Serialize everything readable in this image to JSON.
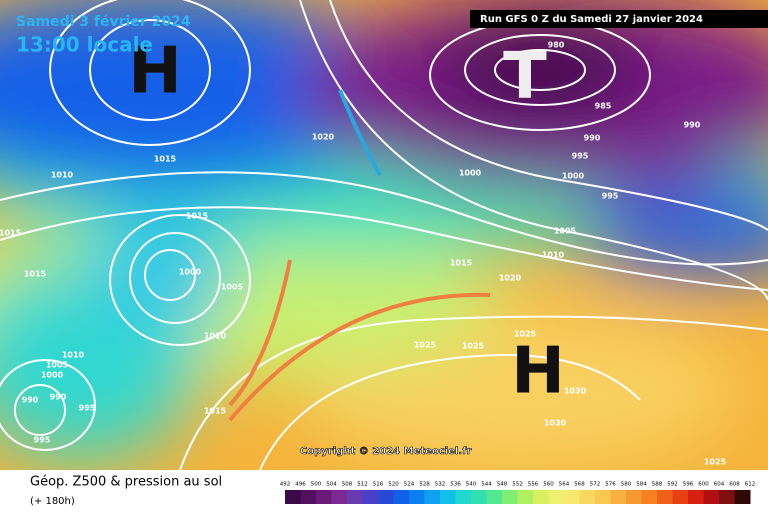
{
  "header": {
    "date": "Samedi 3 février 2024",
    "time": "13:00 locale",
    "run": "Run GFS 0 Z du Samedi 27 janvier 2024"
  },
  "map": {
    "centers": [
      "H",
      "H",
      "T"
    ],
    "isobars": [
      "1020",
      "1015",
      "1010",
      "1015",
      "1000",
      "1005",
      "1010",
      "1015",
      "1015",
      "1010",
      "1005",
      "1000",
      "990",
      "990",
      "995",
      "995",
      "1015",
      "980",
      "985",
      "990",
      "990",
      "995",
      "1000",
      "1000",
      "995",
      "1005",
      "1010",
      "1015",
      "1020",
      "1025",
      "1025",
      "1025",
      "1030",
      "1030",
      "1025"
    ],
    "copyright": "Copyright © 2024 Meteociel.fr"
  },
  "footer": {
    "title": "Géop. Z500 & pression au sol",
    "lead": "(+ 180h)"
  },
  "legend": {
    "ticks": [
      492,
      496,
      500,
      504,
      508,
      512,
      516,
      520,
      524,
      528,
      532,
      536,
      540,
      544,
      548,
      552,
      556,
      560,
      564,
      568,
      572,
      576,
      580,
      584,
      588,
      592,
      596,
      600,
      604,
      608,
      612
    ],
    "colors": [
      "#3a0a4a",
      "#52105e",
      "#6a1a78",
      "#7a2a92",
      "#6a3ab0",
      "#4a40c8",
      "#2a48d8",
      "#1060e8",
      "#0a80f0",
      "#10a0f0",
      "#10c0e8",
      "#20d8d0",
      "#30e0b0",
      "#50e890",
      "#80ee70",
      "#b0f060",
      "#d8f060",
      "#f0f070",
      "#f8e870",
      "#f8d860",
      "#f8c850",
      "#f8b040",
      "#f89830",
      "#f88020",
      "#f06018",
      "#e84010",
      "#d82010",
      "#b01010",
      "#801010",
      "#300808"
    ]
  }
}
